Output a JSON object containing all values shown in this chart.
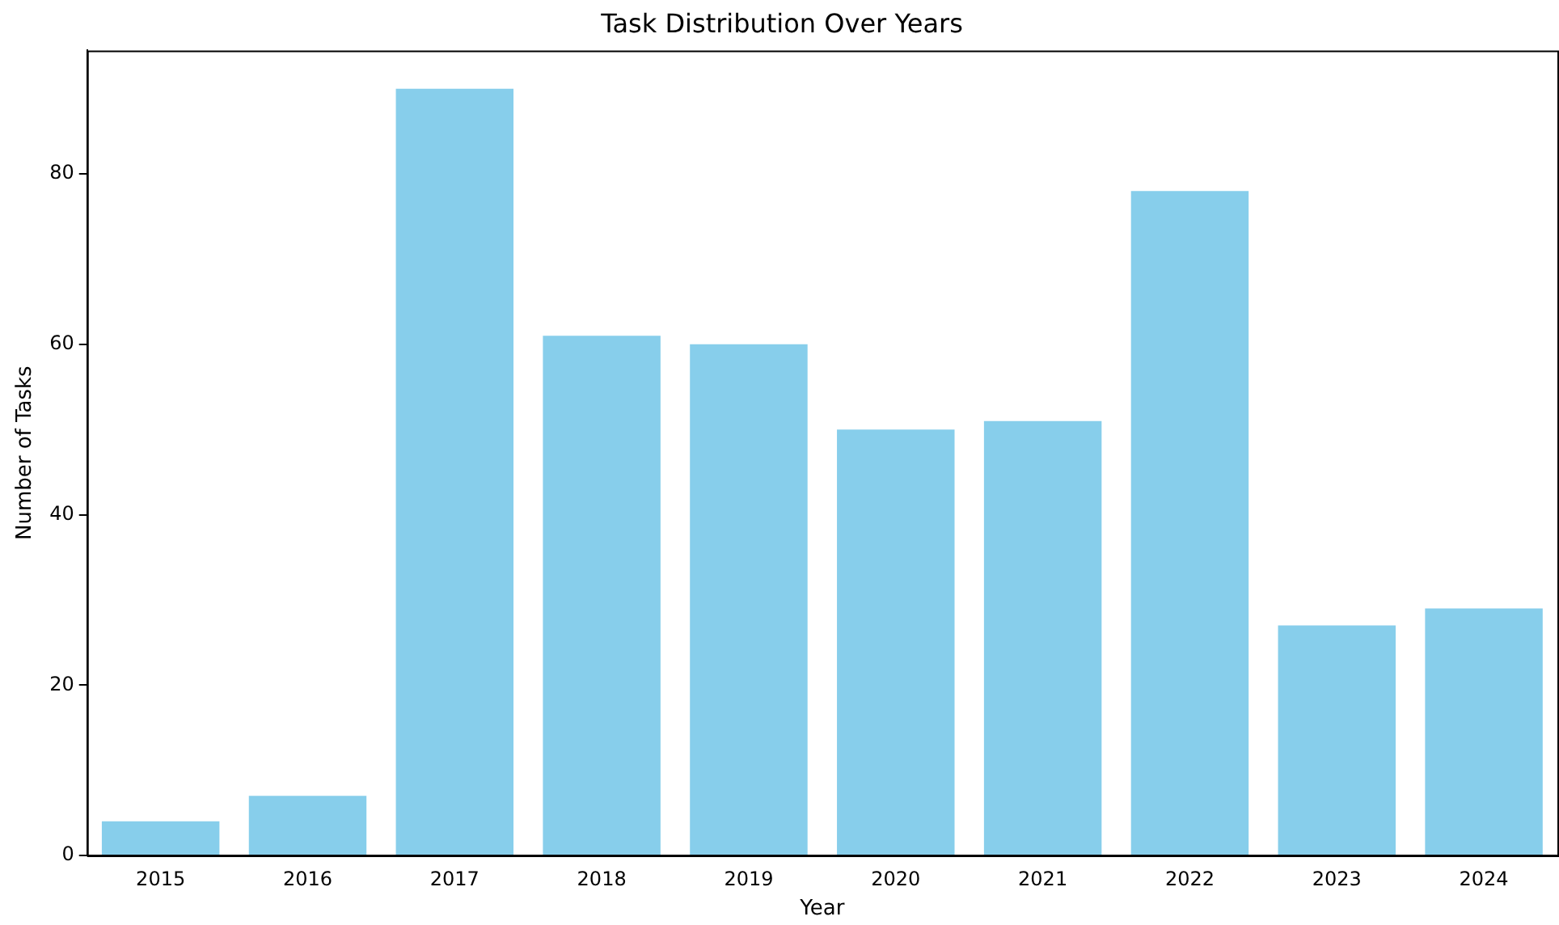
{
  "chart_data": {
    "type": "bar",
    "title": "Task Distribution Over Years",
    "xlabel": "Year",
    "ylabel": "Number of Tasks",
    "categories": [
      "2015",
      "2016",
      "2017",
      "2018",
      "2019",
      "2020",
      "2021",
      "2022",
      "2023",
      "2024"
    ],
    "values": [
      4,
      7,
      90,
      61,
      60,
      50,
      51,
      78,
      27,
      29
    ],
    "color": "#87ceeb",
    "ylim": [
      0,
      94.5
    ],
    "yticks": [
      0,
      20,
      40,
      60,
      80
    ],
    "grid": false,
    "legend": false
  }
}
